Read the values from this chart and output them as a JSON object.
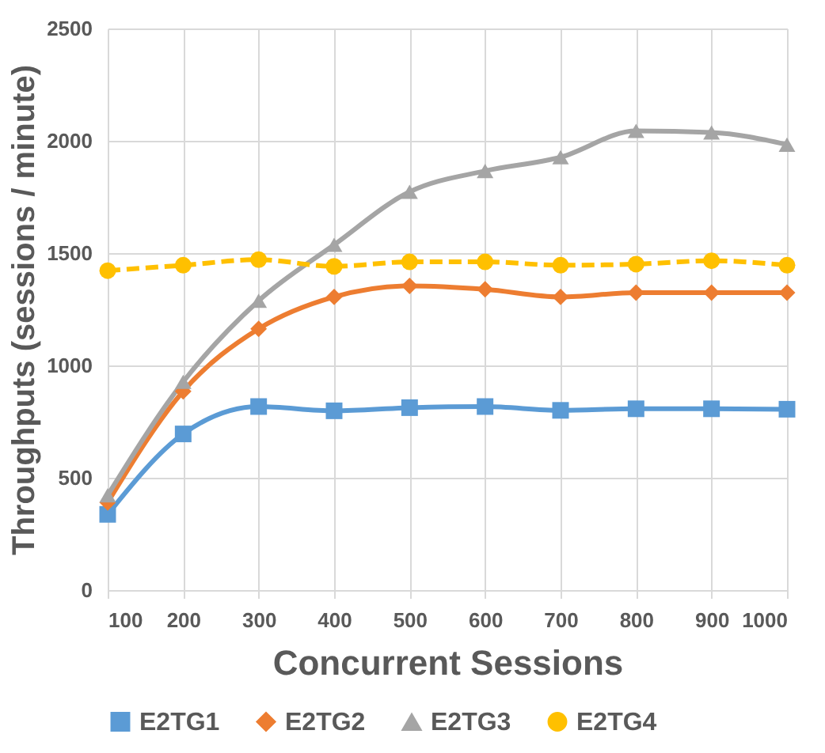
{
  "chart_data": {
    "type": "line",
    "xlabel": "Concurrent Sessions",
    "ylabel": "Throughputs (sessions / minute)",
    "x": [
      100,
      200,
      300,
      400,
      500,
      600,
      700,
      800,
      900,
      1000
    ],
    "xlim": [
      100,
      1000
    ],
    "xticks": [
      100,
      200,
      300,
      400,
      500,
      600,
      700,
      800,
      900,
      1000
    ],
    "ylim": [
      0,
      2500
    ],
    "yticks": [
      0,
      500,
      1000,
      1500,
      2000,
      2500
    ],
    "grid": true,
    "legend": "bottom",
    "series": [
      {
        "name": "E2TG1",
        "color": "#5b9bd5",
        "marker": "square",
        "line_style": "solid",
        "values": [
          337,
          695,
          817,
          798,
          812,
          817,
          800,
          807,
          807,
          805
        ]
      },
      {
        "name": "E2TG2",
        "color": "#ed7d31",
        "marker": "diamond",
        "line_style": "solid",
        "values": [
          390,
          885,
          1163,
          1305,
          1354,
          1339,
          1305,
          1324,
          1324,
          1324
        ]
      },
      {
        "name": "E2TG3",
        "color": "#a5a5a5",
        "marker": "triangle",
        "line_style": "solid",
        "values": [
          422,
          927,
          1288,
          1537,
          1773,
          1866,
          1927,
          2044,
          2037,
          1983
        ]
      },
      {
        "name": "E2TG4",
        "color": "#ffc000",
        "marker": "circle",
        "line_style": "dashed",
        "values": [
          1422,
          1446,
          1471,
          1441,
          1461,
          1461,
          1446,
          1451,
          1466,
          1446
        ]
      }
    ]
  }
}
